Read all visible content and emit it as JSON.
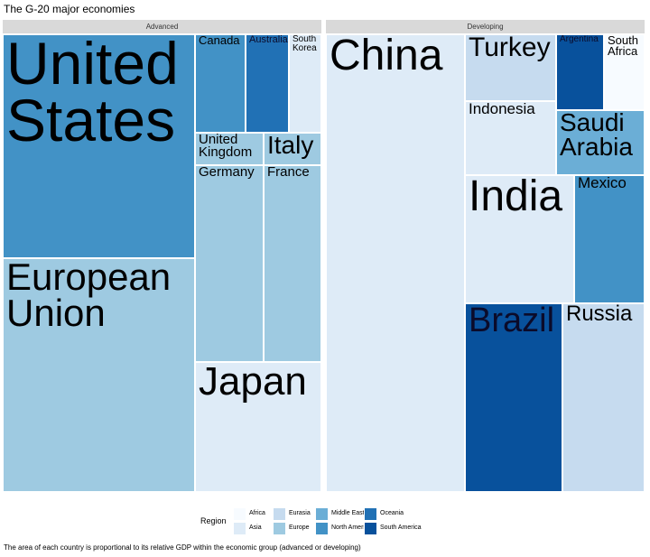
{
  "chart_data": {
    "type": "treemap",
    "title": "The G-20 major economies",
    "caption": "The area of each country is proportional to its relative GDP within the economic group (advanced or developing)",
    "legend": {
      "title": "Region",
      "placement": "bottom",
      "entries": [
        {
          "name": "Africa",
          "color": "#f7fbff"
        },
        {
          "name": "Asia",
          "color": "#deebf7"
        },
        {
          "name": "Eurasia",
          "color": "#c6dbef"
        },
        {
          "name": "Europe",
          "color": "#9ecae1"
        },
        {
          "name": "Middle East",
          "color": "#6baed6"
        },
        {
          "name": "North America",
          "color": "#4292c6"
        },
        {
          "name": "Oceania",
          "color": "#2171b5"
        },
        {
          "name": "South America",
          "color": "#08519c"
        }
      ]
    },
    "groups": [
      {
        "name": "Advanced",
        "tiles": [
          {
            "name": "United\nStates",
            "region": "North America"
          },
          {
            "name": "European\nUnion",
            "region": "Europe"
          },
          {
            "name": "Canada",
            "region": "North America"
          },
          {
            "name": "Australia",
            "region": "Oceania"
          },
          {
            "name": "South\nKorea",
            "region": "Asia"
          },
          {
            "name": "United\nKingdom",
            "region": "Europe"
          },
          {
            "name": "Italy",
            "region": "Europe"
          },
          {
            "name": "Germany",
            "region": "Europe"
          },
          {
            "name": "France",
            "region": "Europe"
          },
          {
            "name": "Japan",
            "region": "Asia"
          }
        ]
      },
      {
        "name": "Developing",
        "tiles": [
          {
            "name": "China",
            "region": "Asia"
          },
          {
            "name": "Turkey",
            "region": "Eurasia"
          },
          {
            "name": "Argentina",
            "region": "South America"
          },
          {
            "name": "South\nAfrica",
            "region": "Africa"
          },
          {
            "name": "Indonesia",
            "region": "Asia"
          },
          {
            "name": "Saudi\nArabia",
            "region": "Middle East"
          },
          {
            "name": "India",
            "region": "Asia"
          },
          {
            "name": "Mexico",
            "region": "North America"
          },
          {
            "name": "Brazil",
            "region": "South America"
          },
          {
            "name": "Russia",
            "region": "Eurasia"
          }
        ]
      }
    ]
  }
}
